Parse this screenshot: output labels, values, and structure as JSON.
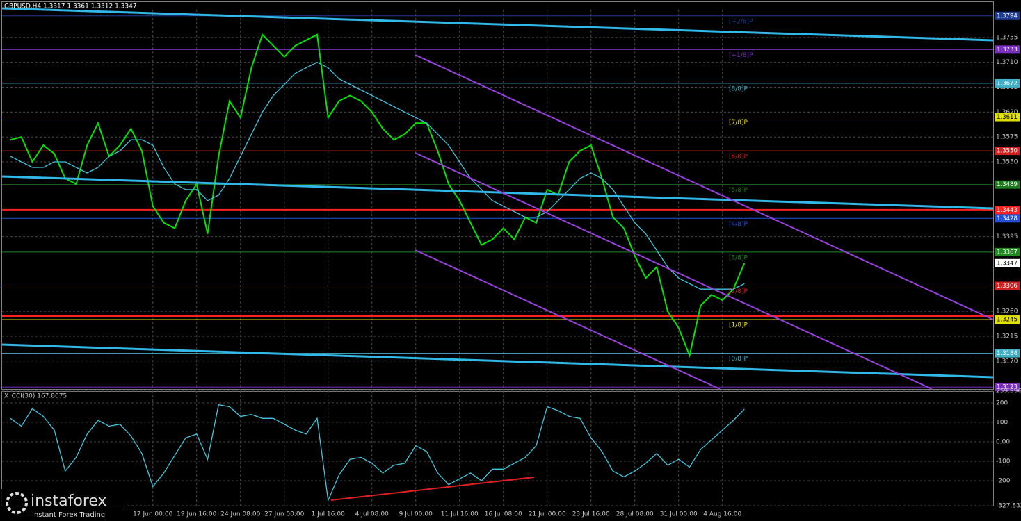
{
  "header": {
    "title": "GBPUSD,H4  1.3317 1.3361 1.3312 1.3347"
  },
  "branding": {
    "name": "instaforex",
    "tagline": "Instant Forex Trading"
  },
  "chart_data": [
    {
      "type": "line",
      "categories": [
        null,
        null,
        null,
        null,
        null,
        null,
        null,
        null,
        null,
        null,
        null,
        null,
        null,
        "17 Jun 00:00",
        null,
        null,
        null,
        "19 Jun 16:00",
        null,
        null,
        null,
        "24 Jun 08:00",
        null,
        null,
        null,
        "27 Jun 00:00",
        null,
        null,
        null,
        "1 Jul 16:00",
        null,
        null,
        null,
        "4 Jul 08:00",
        null,
        null,
        null,
        "9 Jul 00:00",
        null,
        null,
        null,
        "11 Jul 16:00",
        null,
        null,
        null,
        "16 Jul 08:00",
        null,
        null,
        null,
        "21 Jul 00:00",
        null,
        null,
        null,
        "23 Jul 16:00",
        null,
        null,
        null,
        "28 Jul 08:00",
        null,
        null,
        null,
        "31 Jul 00:00",
        null,
        null,
        null,
        "4 Aug 16:00",
        null,
        null
      ],
      "series": [
        {
          "color": "#00e600",
          "values": [
            1.357,
            1.3575,
            1.353,
            1.356,
            1.3545,
            1.35,
            1.349,
            1.356,
            1.36,
            1.354,
            1.356,
            1.359,
            1.355,
            1.345,
            1.342,
            1.341,
            1.346,
            1.349,
            1.34,
            1.354,
            1.364,
            1.361,
            1.37,
            1.376,
            1.374,
            1.372,
            1.374,
            1.375,
            1.376,
            1.361,
            1.364,
            1.365,
            1.364,
            1.362,
            1.359,
            1.357,
            1.358,
            1.36,
            1.36,
            1.355,
            1.349,
            1.346,
            1.342,
            1.338,
            1.339,
            1.341,
            1.339,
            1.343,
            1.342,
            1.348,
            1.347,
            1.353,
            1.355,
            1.356,
            1.35,
            1.343,
            1.341,
            1.336,
            1.332,
            1.334,
            1.326,
            1.323,
            1.318,
            1.327,
            1.329,
            1.328,
            1.33,
            1.3347
          ]
        },
        {
          "color": "#40c8e0",
          "values": [
            1.354,
            1.353,
            1.352,
            1.352,
            1.353,
            1.353,
            1.352,
            1.351,
            1.352,
            1.354,
            1.355,
            1.357,
            1.357,
            1.356,
            1.352,
            1.349,
            1.348,
            1.348,
            1.346,
            1.347,
            1.35,
            1.354,
            1.358,
            1.362,
            1.365,
            1.367,
            1.369,
            1.37,
            1.371,
            1.37,
            1.368,
            1.367,
            1.366,
            1.365,
            1.364,
            1.363,
            1.362,
            1.361,
            1.36,
            1.358,
            1.356,
            1.353,
            1.35,
            1.348,
            1.346,
            1.345,
            1.344,
            1.343,
            1.343,
            1.344,
            1.346,
            1.348,
            1.35,
            1.351,
            1.35,
            1.348,
            1.345,
            1.342,
            1.34,
            1.337,
            1.334,
            1.332,
            1.331,
            1.33,
            1.33,
            1.33,
            1.33,
            1.331
          ]
        }
      ],
      "ylim": [
        1.3117,
        1.3805
      ],
      "yticks": [
        1.3755,
        {
          "value": 1.371,
          "label": "1.3710"
        },
        1.3665,
        {
          "value": 1.362,
          "label": "1.3620"
        },
        1.3575,
        {
          "value": 1.353,
          "label": "1.3530"
        },
        1.3395,
        {
          "value": 1.326,
          "label": "1.3260"
        },
        1.3215,
        {
          "value": 1.317,
          "label": "1.3170"
        }
      ],
      "grid": true,
      "levels": [
        {
          "value": 1.3794,
          "color": "#1e3c96",
          "tag": "[+2/8]P"
        },
        {
          "value": 1.3733,
          "color": "#7b2fbf",
          "tag": "[+1/8]P"
        },
        {
          "value": 1.3672,
          "color": "#40b0c8",
          "tag": "[8/8]P"
        },
        {
          "value": 1.3611,
          "color": "#e0e000",
          "tag": "[7/8]P"
        },
        {
          "value": 1.355,
          "label": "1.3550",
          "color": "#d02020",
          "tag": "[6/8]P"
        },
        {
          "value": 1.3489,
          "color": "#1f7a1f",
          "tag": "[5/8]P"
        },
        {
          "value": 1.3428,
          "color": "#2050e0",
          "tag": "[4/8]P"
        },
        {
          "value": 1.3367,
          "color": "#1f8a1f",
          "tag": "[3/8]P"
        },
        {
          "value": 1.3306,
          "color": "#d02020",
          "tag": "[2/8]P"
        },
        {
          "value": 1.3245,
          "color": "#e0e000",
          "tag": "[1/8]P"
        },
        {
          "value": 1.3184,
          "color": "#40b0c8",
          "tag": "[0/8]P"
        },
        {
          "value": 1.3123,
          "color": "#7b2fbf"
        }
      ],
      "red_lines": [
        1.3443,
        1.3252
      ],
      "current_price": 1.3347
    },
    {
      "type": "line",
      "title": "X_CCI(30) 167.8075",
      "series": [
        {
          "color": "#40c8e0",
          "values": [
            120,
            80,
            170,
            130,
            60,
            -150,
            -80,
            40,
            110,
            80,
            90,
            30,
            -60,
            -230,
            -160,
            -70,
            20,
            40,
            -90,
            190,
            180,
            130,
            140,
            120,
            120,
            90,
            60,
            40,
            120,
            -300,
            -170,
            -90,
            -80,
            -110,
            -160,
            -120,
            -110,
            -20,
            -50,
            -160,
            -220,
            -190,
            -160,
            -200,
            -140,
            -140,
            -110,
            -80,
            -20,
            180,
            160,
            130,
            120,
            20,
            -50,
            -150,
            -180,
            -150,
            -110,
            -60,
            -120,
            -90,
            -130,
            -40,
            10,
            60,
            110,
            167.8075
          ]
        }
      ],
      "ylim": [
        -327.832,
        259.9969
      ],
      "yticks": [
        259.9969,
        200,
        100,
        {
          "value": 0,
          "label": "0.00"
        },
        -100,
        -200,
        -327.832
      ],
      "grid": true
    }
  ]
}
